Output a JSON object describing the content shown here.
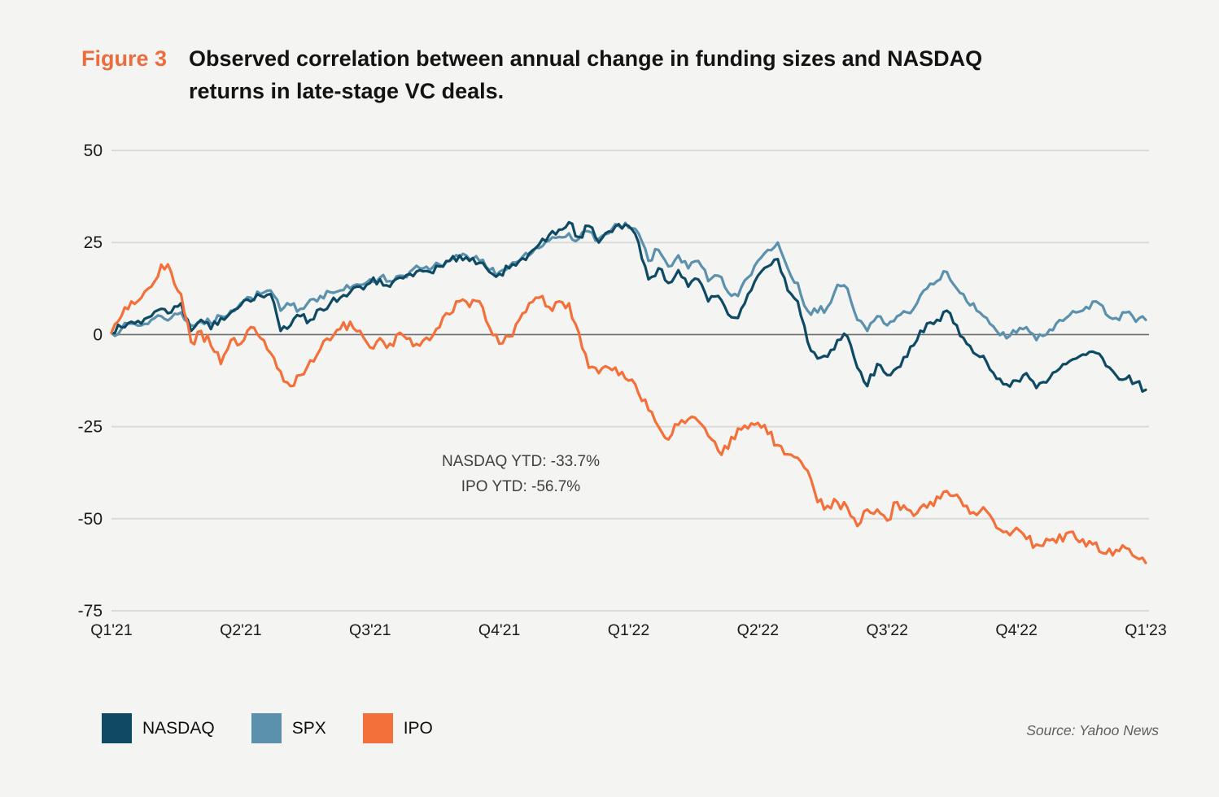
{
  "figure": {
    "label": "Figure 3",
    "title_line1": "Observed correlation between annual change in funding sizes and NASDAQ",
    "title_line2": "returns in late-stage VC deals."
  },
  "annotation": {
    "line1": "NASDAQ YTD: -33.7%",
    "line2": "IPO YTD: -56.7%"
  },
  "source": "Source: Yahoo News",
  "colors": {
    "background": "#F4F4F2",
    "figure_label": "#ED6C3F",
    "grid": "#DADAD8",
    "zero_line": "#6A6A6A",
    "axis_text": "#1A1A1A",
    "annotation_text": "#3F3F3F",
    "source_text": "#5F5F5F"
  },
  "chart_data": {
    "type": "line",
    "title": "Observed correlation between annual change in funding sizes and NASDAQ returns in late-stage VC deals.",
    "unit": "percent return",
    "x_categories": [
      "Q1'21",
      "Q2'21",
      "Q3'21",
      "Q4'21",
      "Q1'22",
      "Q2'22",
      "Q3'22",
      "Q4'22",
      "Q1'23"
    ],
    "y_ticks": [
      50,
      25,
      0,
      -25,
      -50,
      -75
    ],
    "ylim": [
      -75,
      50
    ],
    "grid": "horizontal",
    "legend_position": "bottom-left",
    "sampling": "weekly estimates read from plot (105 points per series)",
    "series": [
      {
        "name": "NASDAQ",
        "color": "#0E4A63",
        "values": [
          0.5,
          2,
          3.5,
          3,
          5,
          7,
          6,
          8.5,
          1,
          4,
          1.5,
          4.5,
          6,
          8,
          9,
          10.5,
          11,
          1,
          2.5,
          5,
          4,
          7,
          8.5,
          10,
          11.5,
          13,
          14,
          15,
          13,
          15.5,
          16.5,
          17.5,
          17,
          18.5,
          20,
          21.5,
          20,
          19.5,
          17,
          16.5,
          18,
          20,
          22,
          24.5,
          27,
          28.5,
          30.5,
          26.5,
          29.5,
          25,
          28,
          30,
          29.5,
          25,
          15,
          18,
          14,
          17.5,
          13,
          15,
          9,
          10.5,
          5.5,
          4.5,
          11,
          16,
          18.5,
          20.5,
          12,
          9,
          -2,
          -6.5,
          -6,
          -1.5,
          -0.5,
          -9,
          -14,
          -8,
          -11,
          -9,
          -6,
          -1.5,
          3,
          4,
          6.5,
          2.5,
          -2.5,
          -5.5,
          -7.5,
          -12,
          -13.5,
          -12.5,
          -10.5,
          -14.5,
          -13,
          -10,
          -8,
          -6.5,
          -5.5,
          -5,
          -8.5,
          -11,
          -12,
          -13,
          -15
        ]
      },
      {
        "name": "SPX",
        "color": "#5B91AD",
        "values": [
          0.5,
          1.5,
          3,
          2.5,
          4,
          5,
          4.5,
          6,
          2.5,
          3.5,
          3,
          5,
          6.5,
          8.5,
          10,
          11,
          12,
          6.5,
          8,
          7,
          9.5,
          10.5,
          11.5,
          12,
          12.5,
          13.5,
          15,
          15.5,
          14.5,
          16,
          17,
          18,
          17.5,
          19,
          20,
          21,
          20.5,
          20,
          17.5,
          17,
          18.5,
          20,
          21.5,
          23.5,
          25.5,
          26.5,
          27.5,
          26,
          28,
          26,
          27.5,
          29.5,
          29,
          27.5,
          20,
          23,
          18.5,
          21.5,
          18,
          20,
          14.5,
          16,
          11.5,
          10.5,
          15.5,
          20,
          23,
          25,
          18,
          14,
          6.5,
          6,
          7.5,
          13.5,
          12.5,
          4,
          1,
          5,
          2.5,
          5,
          6,
          8.5,
          12.5,
          14.5,
          17,
          12.5,
          9,
          6.5,
          4.5,
          1,
          -1,
          0.5,
          2,
          -1.5,
          0,
          3,
          4.5,
          6,
          7.5,
          9,
          5.5,
          4.5,
          6,
          3.5,
          4
        ]
      },
      {
        "name": "IPO",
        "color": "#F4703A",
        "values": [
          0.5,
          5,
          9,
          10,
          13,
          19,
          17,
          11,
          -2,
          1,
          -3,
          -8,
          -1.5,
          -2.5,
          2,
          -1,
          -5,
          -10,
          -14,
          -11,
          -7,
          -4,
          -1.5,
          1.5,
          3.5,
          1,
          -3.5,
          -1,
          -2.5,
          0.5,
          -1,
          -3,
          -1.5,
          2,
          5.5,
          9,
          7.5,
          9,
          2,
          -2.5,
          -0.5,
          4,
          8.5,
          10,
          7.5,
          9,
          8.5,
          0.5,
          -9,
          -10.5,
          -9,
          -11,
          -12.5,
          -16,
          -20.5,
          -25,
          -28.5,
          -24.5,
          -23,
          -23.5,
          -27.5,
          -31.5,
          -31,
          -25.5,
          -25.5,
          -24,
          -27,
          -30,
          -32.5,
          -33.5,
          -37,
          -45.5,
          -46.5,
          -45.5,
          -47,
          -52,
          -47.5,
          -47.5,
          -50.5,
          -45.5,
          -47.5,
          -48.5,
          -47,
          -44,
          -42.5,
          -43.5,
          -46.5,
          -49,
          -48,
          -52.5,
          -53.5,
          -52.5,
          -55.5,
          -57,
          -55.5,
          -56.5,
          -54,
          -55.5,
          -57.5,
          -56.5,
          -59.5,
          -58.5,
          -58,
          -60.5,
          -62
        ]
      }
    ]
  }
}
